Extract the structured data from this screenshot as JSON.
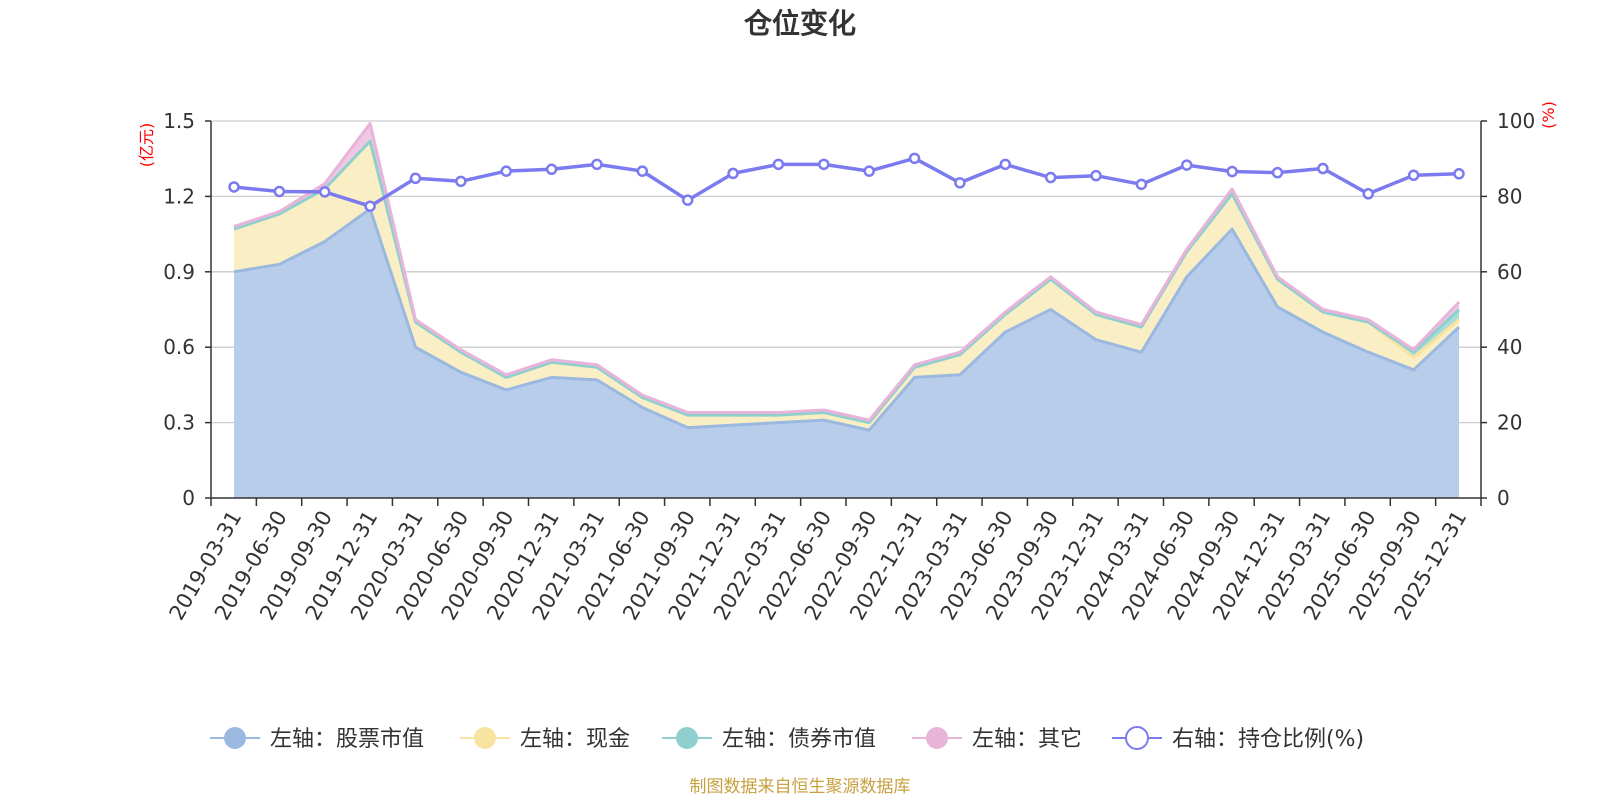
{
  "chart_data": {
    "type": "area",
    "title": "仓位变化",
    "left_unit": "(亿元)",
    "right_unit": "(%)",
    "source": "制图数据来自恒生聚源数据库",
    "x": [
      "2019-03-31",
      "2019-06-30",
      "2019-09-30",
      "2019-12-31",
      "2020-03-31",
      "2020-06-30",
      "2020-09-30",
      "2020-12-31",
      "2021-03-31",
      "2021-06-30",
      "2021-09-30",
      "2021-12-31",
      "2022-03-31",
      "2022-06-30",
      "2022-09-30",
      "2022-12-31",
      "2023-03-31",
      "2023-06-30",
      "2023-09-30",
      "2023-12-31",
      "2024-03-31",
      "2024-06-30",
      "2024-09-30",
      "2024-12-31",
      "2025-03-31",
      "2025-06-30",
      "2025-09-30",
      "2025-12-31"
    ],
    "y_left": {
      "min": 0,
      "max": 1.5,
      "ticks": [
        "0",
        "0.3",
        "0.6",
        "0.9",
        "1.2",
        "1.5"
      ]
    },
    "y_right": {
      "min": 0,
      "max": 100,
      "ticks": [
        "0",
        "20",
        "40",
        "60",
        "80",
        "100"
      ]
    },
    "grid": true,
    "legend_position": "bottom",
    "series": [
      {
        "name": "左轴：股票市值",
        "axis": "left",
        "color": "#9bb8e0",
        "fill": "#b8cdea",
        "values": [
          0.9,
          0.93,
          1.02,
          1.15,
          0.6,
          0.5,
          0.43,
          0.48,
          0.47,
          0.36,
          0.28,
          0.29,
          0.3,
          0.31,
          0.27,
          0.48,
          0.49,
          0.66,
          0.75,
          0.63,
          0.58,
          0.88,
          1.07,
          0.76,
          0.66,
          0.58,
          0.51,
          0.68
        ]
      },
      {
        "name": "左轴：现金",
        "axis": "left",
        "color": "#f8e4a0",
        "fill": "#faeec5",
        "values": [
          0.17,
          0.2,
          0.21,
          0.27,
          0.1,
          0.08,
          0.05,
          0.06,
          0.05,
          0.04,
          0.05,
          0.04,
          0.03,
          0.03,
          0.03,
          0.04,
          0.08,
          0.07,
          0.12,
          0.1,
          0.1,
          0.1,
          0.14,
          0.11,
          0.08,
          0.12,
          0.05,
          0.03
        ]
      },
      {
        "name": "左轴：债券市值",
        "axis": "left",
        "color": "#8fd0cf",
        "fill": "#aadcdb",
        "values": [
          0,
          0,
          0,
          0,
          0,
          0,
          0,
          0,
          0,
          0,
          0,
          0,
          0,
          0,
          0,
          0,
          0,
          0,
          0,
          0,
          0,
          0,
          0,
          0,
          0,
          0,
          0.02,
          0.04
        ]
      },
      {
        "name": "左轴：其它",
        "axis": "left",
        "color": "#e8b4d9",
        "fill": "#f0c8e4",
        "values": [
          0.01,
          0.01,
          0.02,
          0.07,
          0.01,
          0.01,
          0.01,
          0.01,
          0.01,
          0.01,
          0.01,
          0.01,
          0.01,
          0.01,
          0.01,
          0.01,
          0.01,
          0.01,
          0.01,
          0.01,
          0.01,
          0.01,
          0.02,
          0.01,
          0.01,
          0.01,
          0.01,
          0.03
        ]
      },
      {
        "name": "右轴：持仓比例(%)",
        "axis": "right",
        "type": "line",
        "color": "#7b7bef",
        "values": [
          82.5,
          81.3,
          81.2,
          77.4,
          84.8,
          84.0,
          86.7,
          87.2,
          88.5,
          86.7,
          79.0,
          86.1,
          88.5,
          88.5,
          86.7,
          90.1,
          83.6,
          88.5,
          85.0,
          85.5,
          83.2,
          88.3,
          86.6,
          86.3,
          87.4,
          80.7,
          85.6,
          86.0
        ]
      }
    ]
  }
}
